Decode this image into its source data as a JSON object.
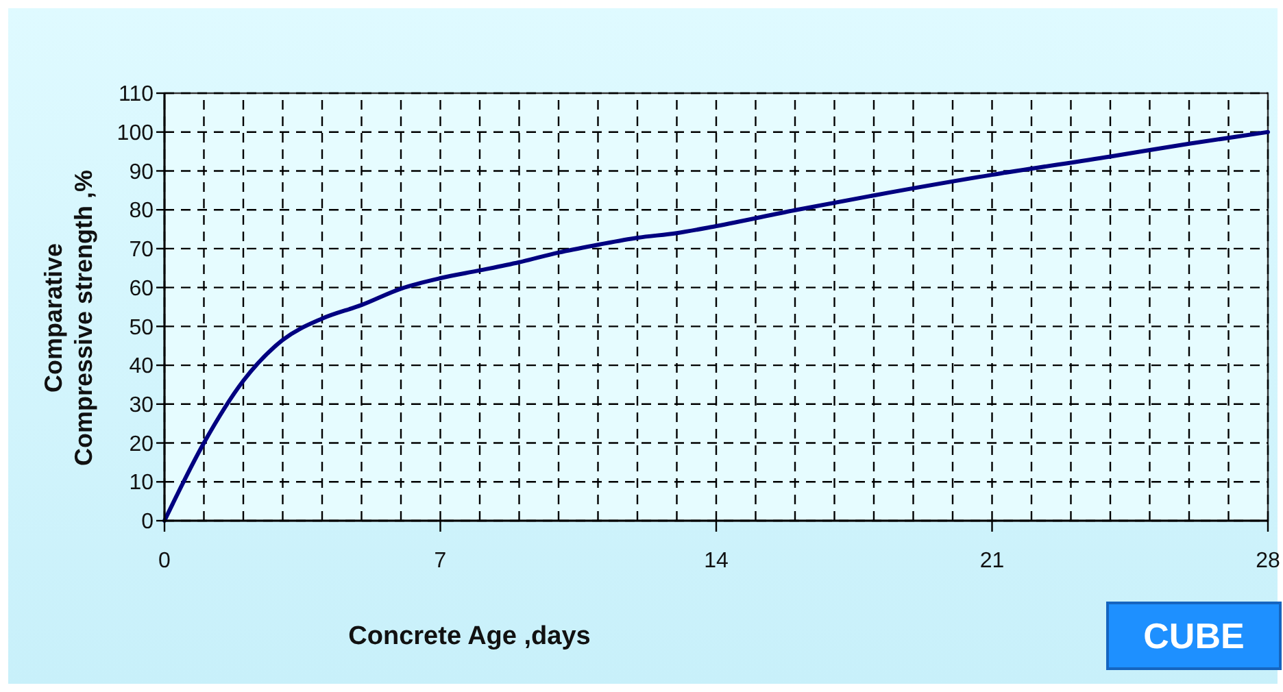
{
  "chart_data": {
    "type": "line",
    "xlabel": "Concrete Age ,days",
    "ylabel": "Comparative\nCompressive strength ,%",
    "annotations": [
      "CUBE"
    ],
    "x": [
      0,
      1,
      2,
      3,
      4,
      5,
      6,
      7,
      8,
      9,
      10,
      11,
      12,
      13,
      14,
      16,
      18,
      21,
      24,
      26,
      28
    ],
    "series": [
      {
        "color": "#000080",
        "values": [
          0,
          20,
          36,
          46.5,
          52,
          55.5,
          59.7,
          62.4,
          64.4,
          66.5,
          69,
          71,
          72.8,
          74,
          75.8,
          79.9,
          83.7,
          89,
          93.7,
          97,
          100
        ]
      }
    ],
    "xlim": [
      0,
      28
    ],
    "xticks": [
      0,
      {
        "value": 1,
        "label": null
      },
      {
        "value": 2,
        "label": null
      },
      {
        "value": 3,
        "label": null
      },
      {
        "value": 4,
        "label": null
      },
      {
        "value": 5,
        "label": null
      },
      {
        "value": 6,
        "label": null
      },
      7,
      {
        "value": 8,
        "label": null
      },
      {
        "value": 9,
        "label": null
      },
      {
        "value": 10,
        "label": null
      },
      {
        "value": 11,
        "label": null
      },
      {
        "value": 12,
        "label": null
      },
      {
        "value": 13,
        "label": null
      },
      14,
      {
        "value": 15,
        "label": null
      },
      {
        "value": 16,
        "label": null
      },
      {
        "value": 17,
        "label": null
      },
      {
        "value": 18,
        "label": null
      },
      {
        "value": 19,
        "label": null
      },
      {
        "value": 20,
        "label": null
      },
      21,
      {
        "value": 22,
        "label": null
      },
      {
        "value": 23,
        "label": null
      },
      {
        "value": 24,
        "label": null
      },
      {
        "value": 25,
        "label": null
      },
      {
        "value": 26,
        "label": null
      },
      {
        "value": 27,
        "label": null
      },
      28
    ],
    "ylim": [
      0,
      110
    ],
    "yticks": [
      0,
      10,
      20,
      30,
      40,
      50,
      60,
      70,
      80,
      90,
      100,
      110
    ],
    "grid": true,
    "line_style": "solid"
  }
}
